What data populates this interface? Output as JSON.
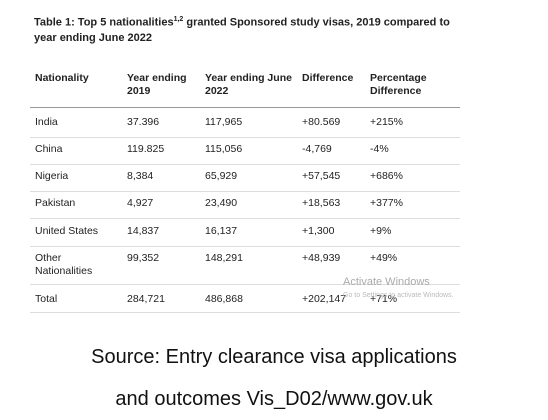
{
  "title": {
    "before": "Table 1: Top 5 nationalities",
    "sup": "1,2",
    "after": " granted Sponsored study visas, 2019 compared to year ending June 2022"
  },
  "table": {
    "headers": [
      "Nationality",
      "Year ending 2019",
      "Year ending June 2022",
      "Difference",
      "Percentage Difference"
    ],
    "rows": [
      [
        "India",
        "37.396",
        "117,965",
        "+80.569",
        "+215%"
      ],
      [
        "China",
        "119.825",
        "115,056",
        "-4,769",
        "-4%"
      ],
      [
        "Nigeria",
        "8,384",
        "65,929",
        "+57,545",
        "+686%"
      ],
      [
        "Pakistan",
        "4,927",
        "23,490",
        "+18,563",
        "+377%"
      ],
      [
        "United States",
        "14,837",
        "16,137",
        "+1,300",
        "+9%"
      ],
      [
        "Other Nationalities",
        "99,352",
        "148,291",
        "+48,939",
        "+49%"
      ],
      [
        "Total",
        "284,721",
        "486,868",
        "+202,147",
        "+71%"
      ]
    ]
  },
  "watermark": {
    "title": "Activate Windows",
    "subtitle": "Go to Settings to activate Windows."
  },
  "source": {
    "line1": "Source: Entry clearance visa applications",
    "line2": "and outcomes Vis_D02/www.gov.uk"
  }
}
